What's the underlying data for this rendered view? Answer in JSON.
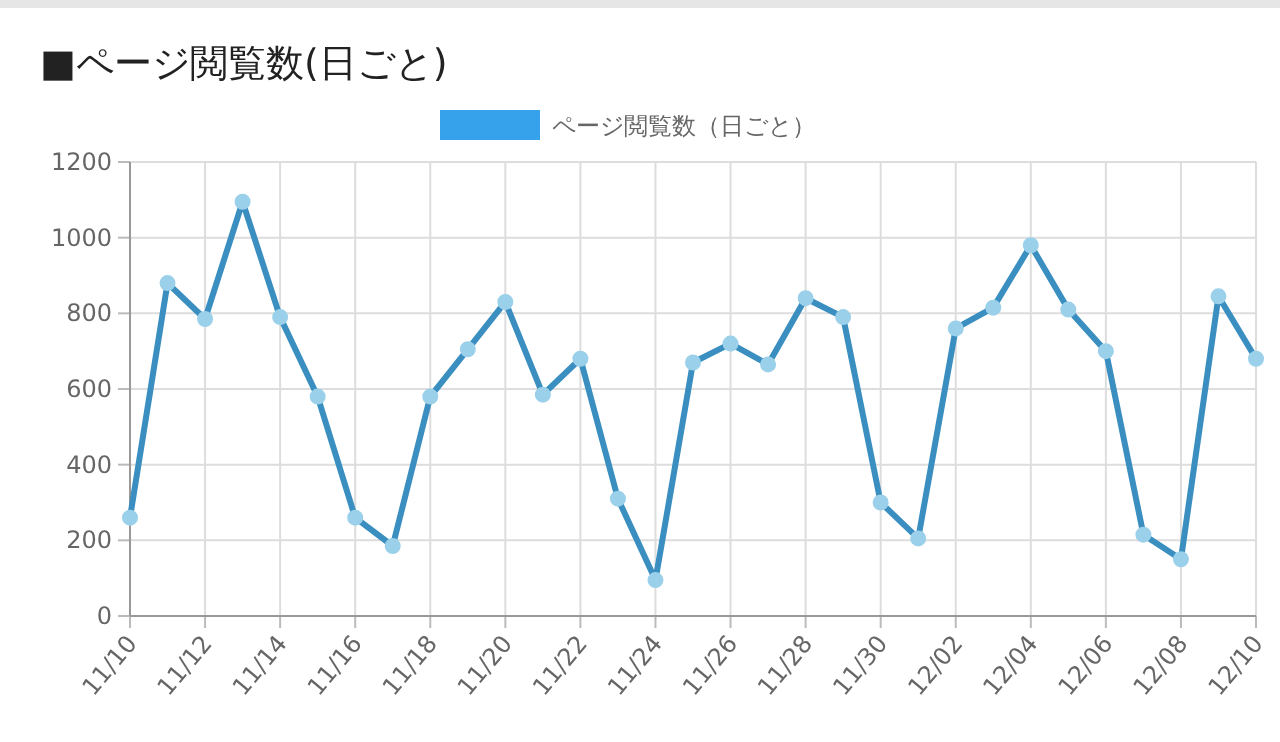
{
  "chart_data": {
    "type": "line",
    "title": "■ページ閲覧数(日ごと)",
    "categories": [
      "11/10",
      null,
      "11/12",
      null,
      "11/14",
      null,
      "11/16",
      null,
      "11/18",
      null,
      "11/20",
      null,
      "11/22",
      null,
      "11/24",
      null,
      "11/26",
      null,
      "11/28",
      null,
      "11/30",
      null,
      "12/02",
      null,
      "12/04",
      null,
      "12/06",
      null,
      "12/08",
      null,
      "12/10"
    ],
    "series": [
      {
        "name": "ページ閲覧数（日ごと）",
        "color": "#3a8fc0",
        "values": [
          260,
          880,
          785,
          1095,
          790,
          580,
          260,
          185,
          580,
          705,
          830,
          585,
          680,
          310,
          95,
          670,
          720,
          665,
          840,
          790,
          300,
          205,
          760,
          815,
          980,
          810,
          700,
          215,
          150,
          845,
          680
        ]
      }
    ],
    "ylim": [
      0,
      1200
    ],
    "yticks": [
      0,
      200,
      400,
      600,
      800,
      1000,
      1200
    ],
    "grid": true,
    "legend": "top",
    "marker": "circle",
    "line_style": "solid"
  }
}
